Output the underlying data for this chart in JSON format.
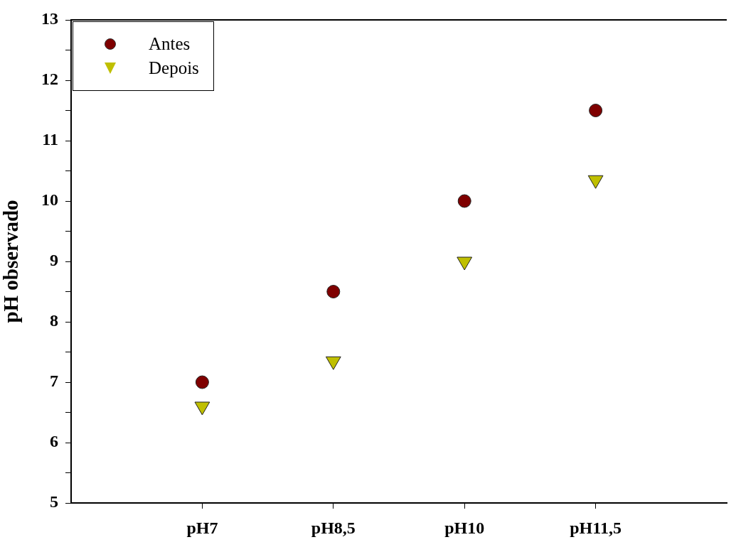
{
  "chart_data": {
    "type": "scatter",
    "ylabel": "pH observado",
    "categories": [
      "pH7",
      "pH8,5",
      "pH10",
      "pH11,5"
    ],
    "series": [
      {
        "name": "Antes",
        "color": "#7f0000",
        "marker": "circle",
        "values": [
          7,
          8.5,
          10,
          11.5
        ]
      },
      {
        "name": "Depois",
        "color": "#bfbf00",
        "marker": "triangle",
        "values": [
          6.6,
          7.35,
          9.0,
          10.35
        ]
      }
    ],
    "ylim": [
      5,
      13
    ],
    "yticks": [
      5,
      {
        "value": 5.5,
        "label": null
      },
      6,
      {
        "value": 6.5,
        "label": null
      },
      7,
      {
        "value": 7.5,
        "label": null
      },
      8,
      {
        "value": 8.5,
        "label": null
      },
      9,
      {
        "value": 9.5,
        "label": null
      },
      10,
      {
        "value": 10.5,
        "label": null
      },
      11,
      {
        "value": 11.5,
        "label": null
      },
      12,
      {
        "value": 12.5,
        "label": null
      },
      13
    ],
    "grid": false,
    "legend": "top left"
  }
}
